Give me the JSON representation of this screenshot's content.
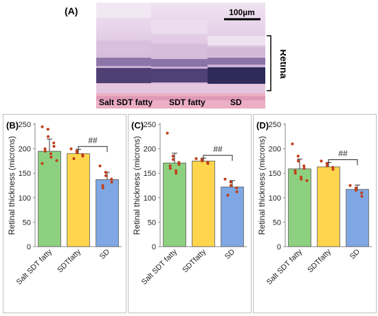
{
  "figure": {
    "panel_a_label": "(A)",
    "scale_bar_label": "100µm",
    "retina_label": "Retina",
    "histology_labels": [
      "Salt SDT fatty",
      "SDT fatty",
      "SD"
    ]
  },
  "colors": {
    "salt_sdt_fatty": "#8dd07f",
    "sdt_fatty": "#ffd54d",
    "sd": "#7fa7e3",
    "points": "#c0401b",
    "frame": "#bfbfbf"
  },
  "chart_data": [
    {
      "type": "bar",
      "panel_label": "(B)",
      "categories": [
        "Salt SDT fatty",
        "SDTfatty",
        "SD"
      ],
      "values": [
        195,
        190,
        137
      ],
      "error": [
        25,
        9,
        15
      ],
      "points": [
        [
          245,
          240,
          225,
          212,
          205,
          200,
          195,
          190,
          183,
          176,
          170
        ],
        [
          200,
          195,
          192,
          188,
          185,
          180
        ],
        [
          165,
          152,
          145,
          138,
          132,
          125,
          120
        ]
      ],
      "ylabel": "Retinal thickness (microns)",
      "ylim": [
        0,
        250
      ],
      "yticks": [
        0,
        50,
        100,
        150,
        200,
        250
      ],
      "significance": {
        "from": 1,
        "to": 2,
        "label": "##"
      }
    },
    {
      "type": "bar",
      "panel_label": "(C)",
      "categories": [
        "Salt SDT fatty",
        "SDTfatty",
        "SD"
      ],
      "values": [
        171,
        175,
        122
      ],
      "error": [
        20,
        6,
        13
      ],
      "points": [
        [
          232,
          185,
          178,
          172,
          168,
          165,
          160,
          155,
          150
        ],
        [
          180,
          178,
          175,
          172,
          170
        ],
        [
          138,
          132,
          125,
          120,
          112,
          105
        ]
      ],
      "ylabel": "Retinal thickness (microns)",
      "ylim": [
        0,
        250
      ],
      "yticks": [
        0,
        50,
        100,
        150,
        200,
        250
      ],
      "significance": {
        "from": 1,
        "to": 2,
        "label": "##"
      }
    },
    {
      "type": "bar",
      "panel_label": "(D)",
      "categories": [
        "Salt SDT fatty",
        "SDTfatty",
        "SD"
      ],
      "values": [
        159,
        163,
        117
      ],
      "error": [
        20,
        9,
        9
      ],
      "points": [
        [
          210,
          185,
          175,
          165,
          160,
          155,
          150,
          142,
          138,
          135
        ],
        [
          175,
          170,
          165,
          162,
          158
        ],
        [
          125,
          120,
          115,
          110,
          103
        ]
      ],
      "ylabel": "Retinal thickness (microns)",
      "ylim": [
        0,
        250
      ],
      "yticks": [
        0,
        50,
        100,
        150,
        200,
        250
      ],
      "significance": {
        "from": 1,
        "to": 2,
        "label": "##"
      }
    }
  ]
}
